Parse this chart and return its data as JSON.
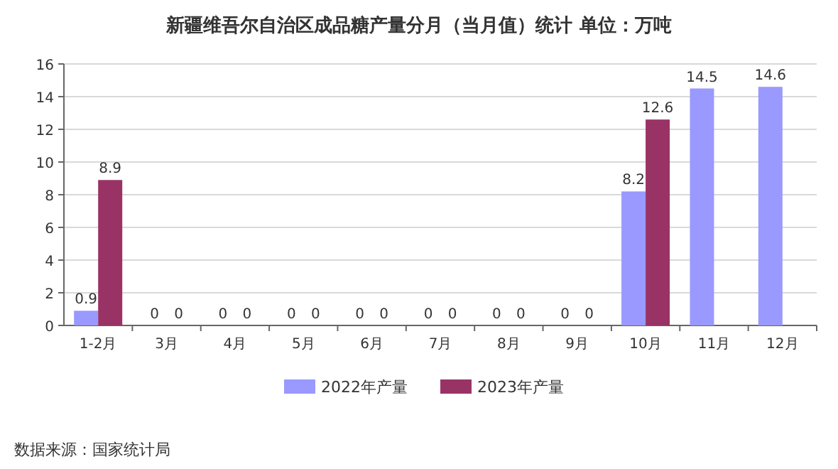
{
  "chart_data": {
    "type": "bar",
    "title": "新疆维吾尔自治区成品糖产量分月（当月值）统计  单位：万吨",
    "categories": [
      "1-2月",
      "3月",
      "4月",
      "5月",
      "6月",
      "7月",
      "8月",
      "9月",
      "10月",
      "11月",
      "12月"
    ],
    "series": [
      {
        "name": "2022年产量",
        "color": "#9999ff",
        "values": [
          0.9,
          0,
          0,
          0,
          0,
          0,
          0,
          0,
          8.2,
          14.5,
          14.6
        ]
      },
      {
        "name": "2023年产量",
        "color": "#993366",
        "values": [
          8.9,
          0,
          0,
          0,
          0,
          0,
          0,
          0,
          12.6,
          null,
          null
        ]
      }
    ],
    "ylim": [
      0,
      16
    ],
    "yticks": [
      0,
      2,
      4,
      6,
      8,
      10,
      12,
      14,
      16
    ],
    "grid": "y",
    "legend": "bottom",
    "data_labels": true,
    "annotations": [
      "数据来源：国家统计局"
    ]
  }
}
